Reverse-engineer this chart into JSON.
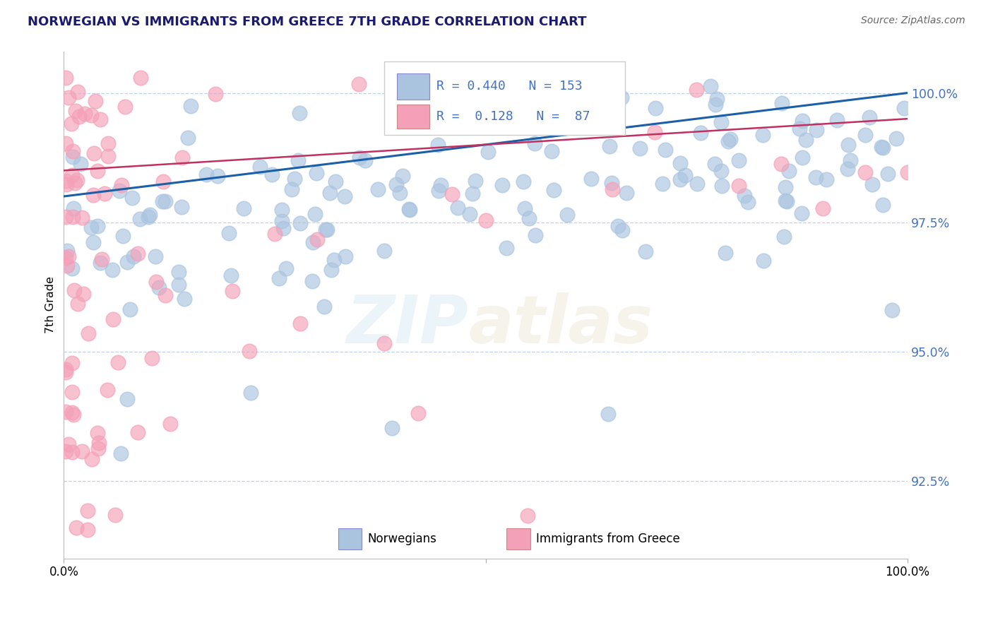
{
  "title": "NORWEGIAN VS IMMIGRANTS FROM GREECE 7TH GRADE CORRELATION CHART",
  "source": "Source: ZipAtlas.com",
  "ylabel": "7th Grade",
  "norwegian_R": 0.44,
  "norwegian_N": 153,
  "greek_R": 0.128,
  "greek_N": 87,
  "norwegian_color": "#aac4e0",
  "norwegian_edge_color": "#aac4e0",
  "greek_color": "#f4a0b8",
  "greek_edge_color": "#f4a0b8",
  "norwegian_line_color": "#1a5fa8",
  "greek_line_color": "#c03060",
  "tick_color": "#4472c4",
  "watermark_zip_color": "#6baed6",
  "watermark_atlas_color": "#bda96a",
  "legend_border_color": "#cccccc",
  "background_color": "#ffffff",
  "grid_color": "#c0d0e8",
  "title_color": "#1a1a6e",
  "source_color": "#666666",
  "x_min": 0.0,
  "x_max": 100.0,
  "y_min": 91.0,
  "y_max": 100.8,
  "y_ticks": [
    92.5,
    95.0,
    97.5,
    100.0
  ],
  "nor_line_y0": 98.0,
  "nor_line_y1": 100.0,
  "grk_line_y0": 98.5,
  "grk_line_y1": 99.5
}
